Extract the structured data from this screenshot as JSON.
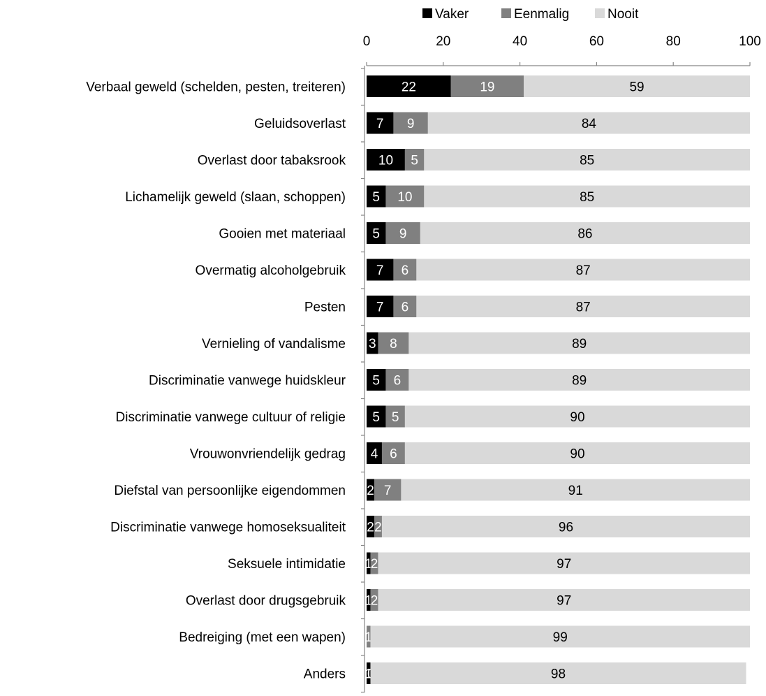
{
  "chart_data": {
    "type": "bar",
    "orientation": "horizontal",
    "stacked": true,
    "title": "",
    "xlabel": "",
    "ylabel": "",
    "xlim": [
      0,
      100
    ],
    "x_ticks": [
      0,
      20,
      40,
      60,
      80,
      100
    ],
    "x_tick_labels": [
      "0",
      "20",
      "40",
      "60",
      "80",
      "100"
    ],
    "x_axis_position": "top",
    "grid": false,
    "legend_position": "top",
    "categories": [
      "Verbaal geweld (schelden, pesten, treiteren)",
      "Geluidsoverlast",
      "Overlast door tabaksrook",
      "Lichamelijk geweld (slaan, schoppen)",
      "Gooien met materiaal",
      "Overmatig alcoholgebruik",
      "Pesten",
      "Vernieling of vandalisme",
      "Discriminatie vanwege huidskleur",
      "Discriminatie vanwege cultuur of religie",
      "Vrouwonvriendelijk gedrag",
      "Diefstal van persoonlijke eigendommen",
      "Discriminatie vanwege homoseksualiteit",
      "Seksuele intimidatie",
      "Overlast door drugsgebruik",
      "Bedreiging (met een wapen)",
      "Anders"
    ],
    "series": [
      {
        "name": "Vaker",
        "color": "#000000",
        "label_color": "#ffffff",
        "values": [
          22,
          7,
          10,
          5,
          5,
          7,
          7,
          3,
          5,
          5,
          4,
          2,
          2,
          1,
          1,
          0,
          1
        ],
        "data_labels": [
          "22",
          "7",
          "10",
          "5",
          "5",
          "7",
          "7",
          "3",
          "5",
          "5",
          "4",
          "2",
          "2",
          "1",
          "1",
          "",
          "1"
        ]
      },
      {
        "name": "Eenmalig",
        "color": "#808080",
        "label_color": "#ffffff",
        "values": [
          19,
          9,
          5,
          10,
          9,
          6,
          6,
          8,
          6,
          5,
          6,
          7,
          2,
          2,
          2,
          1,
          0
        ],
        "data_labels": [
          "19",
          "9",
          "5",
          "10",
          "9",
          "6",
          "6",
          "8",
          "6",
          "5",
          "6",
          "7",
          "2",
          "2",
          "2",
          "1",
          "0"
        ]
      },
      {
        "name": "Nooit",
        "color": "#d9d9d9",
        "label_color": "#000000",
        "values": [
          59,
          84,
          85,
          85,
          86,
          87,
          87,
          89,
          89,
          90,
          90,
          91,
          96,
          97,
          97,
          99,
          98
        ],
        "data_labels": [
          "59",
          "84",
          "85",
          "85",
          "86",
          "87",
          "87",
          "89",
          "89",
          "90",
          "90",
          "91",
          "96",
          "97",
          "97",
          "99",
          "98"
        ]
      }
    ]
  }
}
